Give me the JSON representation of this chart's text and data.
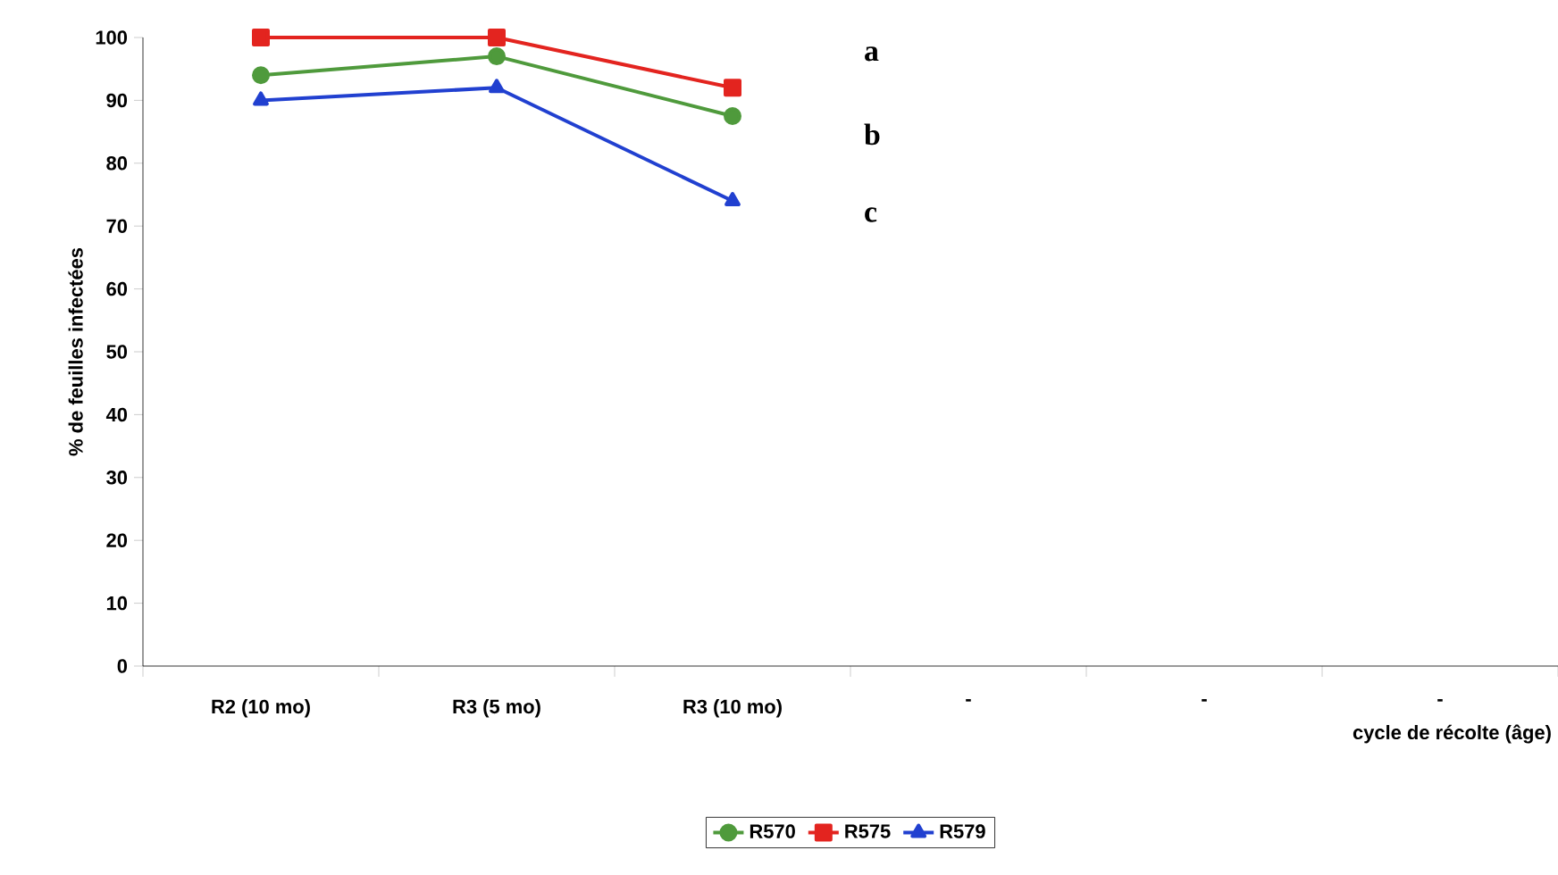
{
  "chart_data": {
    "type": "line",
    "xlabel": "cycle de récolte (âge)",
    "ylabel": "% de feuilles infectées",
    "categories": [
      "R2 (10 mo)",
      "R3 (5 mo)",
      "R3 (10 mo)",
      "-",
      "-",
      "-"
    ],
    "series": [
      {
        "name": "R570",
        "color": "#4f9a3c",
        "marker": "circle",
        "values": [
          94,
          97,
          87.5,
          null,
          null,
          null
        ]
      },
      {
        "name": "R575",
        "color": "#e3241f",
        "marker": "square",
        "values": [
          100,
          100,
          92,
          null,
          null,
          null
        ]
      },
      {
        "name": "R579",
        "color": "#2140d0",
        "marker": "triangle",
        "values": [
          90,
          92,
          74,
          null,
          null,
          null
        ]
      }
    ],
    "ylim": [
      0,
      100
    ],
    "yticks": [
      0,
      10,
      20,
      30,
      40,
      50,
      60,
      70,
      80,
      90,
      100
    ],
    "annotations": [
      "a",
      "b",
      "c"
    ],
    "legend": "bottom",
    "grid": false
  }
}
